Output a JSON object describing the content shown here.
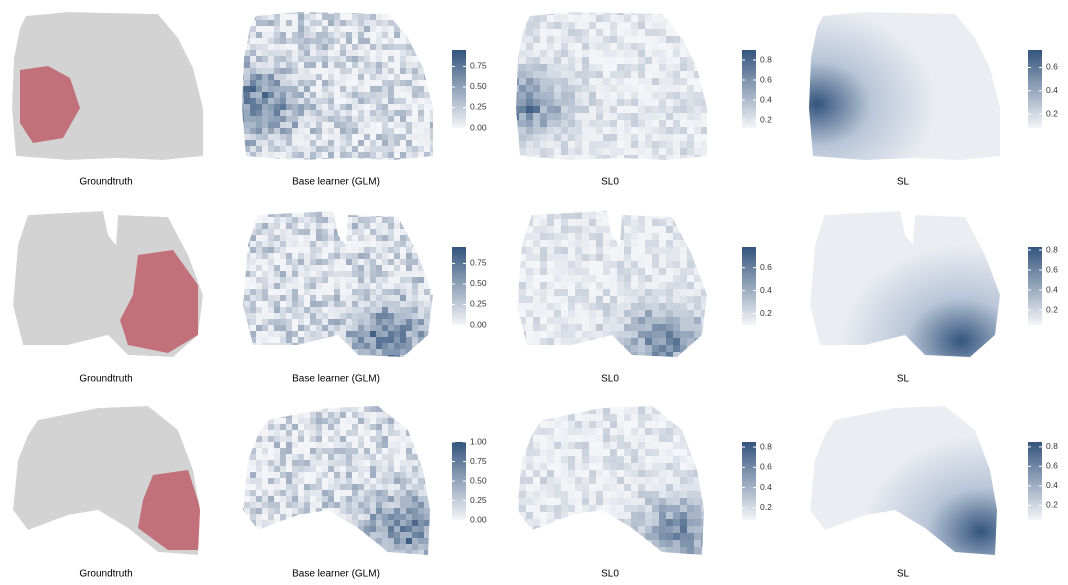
{
  "rows": [
    {
      "panels": [
        {
          "label": "Groundtruth"
        },
        {
          "label": "Base learner (GLM)",
          "colorbar": {
            "lim": [
              0,
              0.95
            ],
            "ticks": [
              {
                "value": 0,
                "label": "0.00"
              },
              0.25,
              {
                "value": 0.5,
                "label": "0.50"
              },
              0.75
            ]
          }
        },
        {
          "label": "SL0",
          "colorbar": {
            "lim": [
              0.12,
              0.9
            ],
            "ticks": [
              0.2,
              0.4,
              0.6,
              0.8
            ]
          }
        },
        {
          "label": "SL",
          "colorbar": {
            "lim": [
              0.08,
              0.75
            ],
            "ticks": [
              0.2,
              0.4,
              0.6
            ]
          }
        }
      ]
    },
    {
      "panels": [
        {
          "label": "Groundtruth"
        },
        {
          "label": "Base learner (GLM)",
          "colorbar": {
            "lim": [
              0,
              0.95
            ],
            "ticks": [
              {
                "value": 0,
                "label": "0.00"
              },
              0.25,
              {
                "value": 0.5,
                "label": "0.50"
              },
              0.75
            ]
          }
        },
        {
          "label": "SL0",
          "colorbar": {
            "lim": [
              0.1,
              0.78
            ],
            "ticks": [
              0.2,
              0.4,
              0.6
            ]
          }
        },
        {
          "label": "SL",
          "colorbar": {
            "lim": [
              0.05,
              0.83
            ],
            "ticks": [
              0.2,
              0.4,
              0.6,
              0.8
            ]
          }
        }
      ]
    },
    {
      "panels": [
        {
          "label": "Groundtruth"
        },
        {
          "label": "Base learner (GLM)",
          "colorbar": {
            "lim": [
              0,
              1
            ],
            "ticks": [
              {
                "value": 0,
                "label": "0.00"
              },
              0.25,
              {
                "value": 0.5,
                "label": "0.50"
              },
              0.75,
              {
                "value": 1,
                "label": "1.00"
              }
            ]
          }
        },
        {
          "label": "SL0",
          "colorbar": {
            "lim": [
              0.08,
              0.85
            ],
            "ticks": [
              0.2,
              0.4,
              0.6,
              0.8
            ]
          }
        },
        {
          "label": "SL",
          "colorbar": {
            "lim": [
              0.05,
              0.85
            ],
            "ticks": [
              0.2,
              0.4,
              0.6,
              0.8
            ]
          }
        }
      ]
    }
  ]
}
